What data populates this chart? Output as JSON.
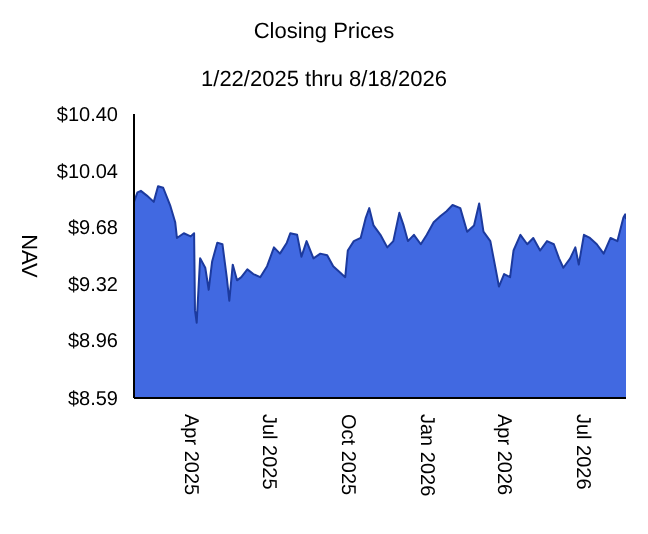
{
  "chart_data": {
    "type": "area",
    "title": "Closing Prices",
    "subtitle": "1/22/2025 thru 8/18/2026",
    "ylabel": "NAV",
    "x": [
      "2025-01-22",
      "2025-01-26",
      "2025-01-30",
      "2025-02-06",
      "2025-02-14",
      "2025-02-19",
      "2025-02-25",
      "2025-03-05",
      "2025-03-11",
      "2025-03-13",
      "2025-03-21",
      "2025-03-29",
      "2025-04-02",
      "2025-04-03",
      "2025-04-05",
      "2025-04-09",
      "2025-04-15",
      "2025-04-19",
      "2025-04-23",
      "2025-04-29",
      "2025-05-05",
      "2025-05-10",
      "2025-05-13",
      "2025-05-17",
      "2025-05-22",
      "2025-05-27",
      "2025-06-03",
      "2025-06-10",
      "2025-06-18",
      "2025-06-26",
      "2025-07-04",
      "2025-07-11",
      "2025-07-19",
      "2025-07-23",
      "2025-07-31",
      "2025-08-05",
      "2025-08-11",
      "2025-08-19",
      "2025-08-27",
      "2025-09-04",
      "2025-09-11",
      "2025-09-19",
      "2025-09-25",
      "2025-09-28",
      "2025-10-05",
      "2025-10-13",
      "2025-10-19",
      "2025-10-23",
      "2025-10-28",
      "2025-11-05",
      "2025-11-13",
      "2025-11-20",
      "2025-11-27",
      "2025-12-02",
      "2025-12-07",
      "2025-12-14",
      "2025-12-22",
      "2025-12-29",
      "2026-01-06",
      "2026-01-14",
      "2026-01-21",
      "2026-01-28",
      "2026-02-06",
      "2026-02-14",
      "2026-02-22",
      "2026-02-28",
      "2026-03-05",
      "2026-03-13",
      "2026-03-21",
      "2026-03-23",
      "2026-03-29",
      "2026-04-05",
      "2026-04-09",
      "2026-04-17",
      "2026-04-25",
      "2026-05-02",
      "2026-05-10",
      "2026-05-18",
      "2026-05-26",
      "2026-06-01",
      "2026-06-06",
      "2026-06-14",
      "2026-06-20",
      "2026-06-24",
      "2026-06-30",
      "2026-07-07",
      "2026-07-15",
      "2026-07-23",
      "2026-07-31",
      "2026-08-08",
      "2026-08-15",
      "2026-08-17",
      "2026-08-18"
    ],
    "series": [
      {
        "color": "#4169e1",
        "values": [
          9.84,
          9.9,
          9.91,
          9.88,
          9.84,
          9.94,
          9.93,
          9.82,
          9.71,
          9.61,
          9.64,
          9.62,
          9.64,
          9.15,
          9.07,
          9.48,
          9.42,
          9.28,
          9.46,
          9.58,
          9.57,
          9.36,
          9.21,
          9.44,
          9.34,
          9.36,
          9.41,
          9.38,
          9.36,
          9.43,
          9.55,
          9.51,
          9.58,
          9.64,
          9.63,
          9.49,
          9.59,
          9.48,
          9.51,
          9.5,
          9.43,
          9.39,
          9.36,
          9.53,
          9.59,
          9.61,
          9.74,
          9.8,
          9.69,
          9.63,
          9.55,
          9.59,
          9.77,
          9.69,
          9.59,
          9.63,
          9.57,
          9.63,
          9.71,
          9.75,
          9.78,
          9.82,
          9.8,
          9.65,
          9.69,
          9.83,
          9.65,
          9.59,
          9.36,
          9.3,
          9.38,
          9.36,
          9.53,
          9.63,
          9.57,
          9.61,
          9.53,
          9.59,
          9.57,
          9.48,
          9.42,
          9.48,
          9.55,
          9.44,
          9.63,
          9.61,
          9.57,
          9.51,
          9.61,
          9.59,
          9.74,
          9.76,
          9.73
        ]
      }
    ],
    "xlim": [
      "2025-01-22",
      "2026-08-18"
    ],
    "xticks": [
      {
        "value": "2025-04-01",
        "label": "Apr 2025"
      },
      {
        "value": "2025-07-01",
        "label": "Jul 2025"
      },
      {
        "value": "2025-10-01",
        "label": "Oct 2025"
      },
      {
        "value": "2026-01-01",
        "label": "Jan 2026"
      },
      {
        "value": "2026-04-01",
        "label": "Apr 2026"
      },
      {
        "value": "2026-07-01",
        "label": "Jul 2026"
      }
    ],
    "ylim": [
      8.59,
      10.4
    ],
    "yticks": [
      {
        "value": 8.59,
        "label": "$8.59"
      },
      {
        "value": 8.96,
        "label": "$8.96"
      },
      {
        "value": 9.32,
        "label": "$9.32"
      },
      {
        "value": 9.68,
        "label": "$9.68"
      },
      {
        "value": 10.04,
        "label": "$10.04"
      },
      {
        "value": 10.4,
        "label": "$10.40"
      }
    ],
    "grid": false,
    "legend": false
  }
}
